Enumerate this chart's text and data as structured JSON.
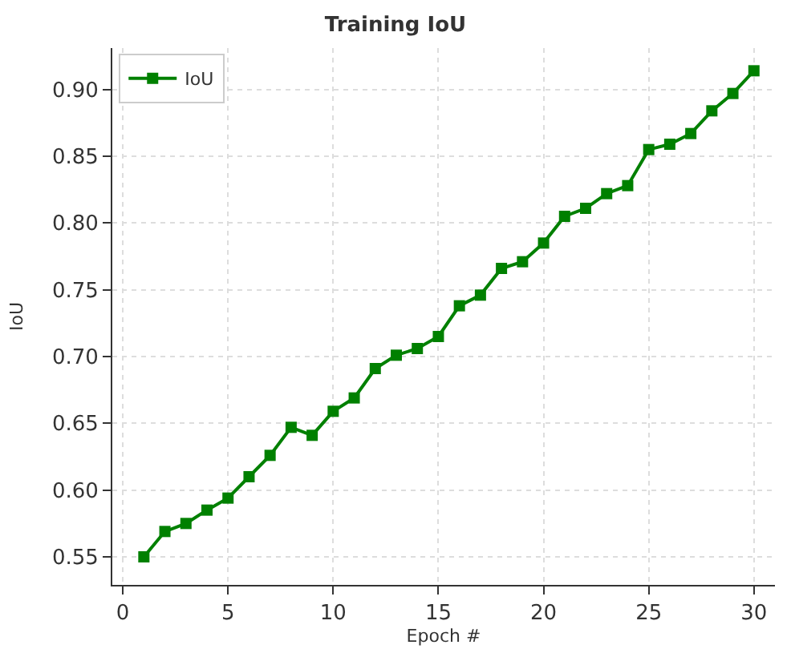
{
  "chart_data": {
    "type": "line",
    "title": "Training IoU",
    "xlabel": "Epoch #",
    "ylabel": "IoU",
    "x": [
      1,
      2,
      3,
      4,
      5,
      6,
      7,
      8,
      9,
      10,
      11,
      12,
      13,
      14,
      15,
      16,
      17,
      18,
      19,
      20,
      21,
      22,
      23,
      24,
      25,
      26,
      27,
      28,
      29,
      30
    ],
    "series": [
      {
        "name": "IoU",
        "color": "#008000",
        "values": [
          0.55,
          0.569,
          0.575,
          0.585,
          0.594,
          0.61,
          0.626,
          0.647,
          0.641,
          0.659,
          0.669,
          0.691,
          0.701,
          0.706,
          0.715,
          0.738,
          0.746,
          0.766,
          0.771,
          0.785,
          0.805,
          0.811,
          0.822,
          0.828,
          0.855,
          0.859,
          0.867,
          0.884,
          0.897,
          0.914
        ]
      }
    ],
    "xlim": [
      -0.5,
      31
    ],
    "ylim": [
      0.529,
      0.931
    ],
    "xticks": [
      0,
      5,
      10,
      15,
      20,
      25,
      30
    ],
    "yticks": [
      {
        "value": 0.55,
        "label": "0.55"
      },
      {
        "value": 0.6,
        "label": "0.60"
      },
      {
        "value": 0.65,
        "label": "0.65"
      },
      {
        "value": 0.7,
        "label": "0.70"
      },
      {
        "value": 0.75,
        "label": "0.75"
      },
      {
        "value": 0.8,
        "label": "0.80"
      },
      {
        "value": 0.85,
        "label": "0.85"
      },
      {
        "value": 0.9,
        "label": "0.90"
      }
    ],
    "grid": true,
    "legend": "top left",
    "marker": "square",
    "line_style": "solid"
  }
}
